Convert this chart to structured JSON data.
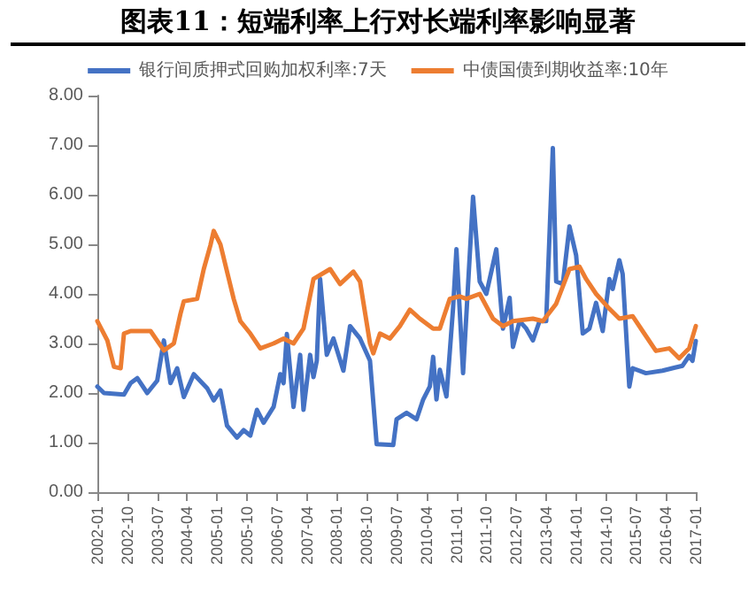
{
  "chart_data": {
    "type": "line",
    "title": "图表11：短端利率上行对长端利率影响显著",
    "legend": "top",
    "grid": false,
    "marker": "none",
    "line_style": "solid",
    "ylim": [
      0,
      8
    ],
    "yticks": [
      {
        "value": 0,
        "label": "0.00"
      },
      {
        "value": 1,
        "label": "1.00"
      },
      {
        "value": 2,
        "label": "2.00"
      },
      {
        "value": 3,
        "label": "3.00"
      },
      {
        "value": 4,
        "label": "4.00"
      },
      {
        "value": 5,
        "label": "5.00"
      },
      {
        "value": 6,
        "label": "6.00"
      },
      {
        "value": 7,
        "label": "7.00"
      },
      {
        "value": 8,
        "label": "8.00"
      }
    ],
    "xlim": [
      "2002-01",
      "2017-01"
    ],
    "xticks": [
      "2002-01",
      "2002-10",
      "2003-07",
      "2004-04",
      "2005-01",
      "2005-10",
      "2006-07",
      "2007-04",
      "2008-01",
      "2008-10",
      "2009-07",
      "2010-04",
      "2011-01",
      "2011-10",
      "2012-07",
      "2013-04",
      "2014-01",
      "2014-10",
      "2015-07",
      "2016-04",
      "2017-01"
    ],
    "series": [
      {
        "name": "银行间质押式回购加权利率:7天",
        "color": "#4472c4",
        "x": [
          "2002-01",
          "2002-03",
          "2002-09",
          "2002-11",
          "2003-01",
          "2003-04",
          "2003-07",
          "2003-09",
          "2003-11",
          "2004-01",
          "2004-03",
          "2004-06",
          "2004-10",
          "2004-12",
          "2005-02",
          "2005-04",
          "2005-07",
          "2005-09",
          "2005-11",
          "2006-01",
          "2006-03",
          "2006-06",
          "2006-08",
          "2006-09",
          "2006-10",
          "2006-12",
          "2007-02",
          "2007-03",
          "2007-05",
          "2007-06",
          "2007-07",
          "2007-08",
          "2007-10",
          "2007-12",
          "2008-03",
          "2008-05",
          "2008-08",
          "2008-11",
          "2009-01",
          "2009-06",
          "2009-07",
          "2009-10",
          "2010-01",
          "2010-03",
          "2010-05",
          "2010-06",
          "2010-07",
          "2010-08",
          "2010-10",
          "2010-12",
          "2011-01",
          "2011-03",
          "2011-06",
          "2011-08",
          "2011-10",
          "2012-01",
          "2012-03",
          "2012-05",
          "2012-06",
          "2012-08",
          "2012-10",
          "2012-12",
          "2013-02",
          "2013-04",
          "2013-06",
          "2013-07",
          "2013-09",
          "2013-11",
          "2014-01",
          "2014-03",
          "2014-05",
          "2014-07",
          "2014-09",
          "2014-11",
          "2014-12",
          "2015-02",
          "2015-03",
          "2015-05",
          "2015-06",
          "2015-10",
          "2016-03",
          "2016-09",
          "2016-11",
          "2016-12",
          "2017-01"
        ],
        "values": [
          2.13,
          2.0,
          1.97,
          2.2,
          2.3,
          2.0,
          2.25,
          3.06,
          2.2,
          2.5,
          1.92,
          2.38,
          2.1,
          1.85,
          2.05,
          1.34,
          1.1,
          1.25,
          1.14,
          1.66,
          1.4,
          1.72,
          2.38,
          2.2,
          3.19,
          1.72,
          2.77,
          1.66,
          2.77,
          2.32,
          2.65,
          4.3,
          2.77,
          3.1,
          2.45,
          3.35,
          3.1,
          2.65,
          0.97,
          0.95,
          1.47,
          1.6,
          1.47,
          1.87,
          2.13,
          2.73,
          1.87,
          2.47,
          1.93,
          3.72,
          4.9,
          2.4,
          5.96,
          4.25,
          4.0,
          4.9,
          3.3,
          3.92,
          2.93,
          3.45,
          3.3,
          3.06,
          3.45,
          3.45,
          6.94,
          4.25,
          4.2,
          5.36,
          4.78,
          3.2,
          3.3,
          3.82,
          3.25,
          4.3,
          4.1,
          4.68,
          4.4,
          2.13,
          2.5,
          2.4,
          2.45,
          2.55,
          2.75,
          2.65,
          3.05
        ]
      },
      {
        "name": "中债国债到期收益率:10年",
        "color": "#ed7d31",
        "x": [
          "2002-01",
          "2002-04",
          "2002-06",
          "2002-08",
          "2002-09",
          "2002-11",
          "2003-05",
          "2003-09",
          "2003-12",
          "2004-02",
          "2004-03",
          "2004-07",
          "2004-09",
          "2004-11",
          "2004-12",
          "2005-02",
          "2005-06",
          "2005-08",
          "2005-11",
          "2006-02",
          "2006-06",
          "2006-09",
          "2006-12",
          "2007-03",
          "2007-06",
          "2007-11",
          "2008-02",
          "2008-06",
          "2008-08",
          "2008-11",
          "2008-12",
          "2009-02",
          "2009-05",
          "2009-08",
          "2009-11",
          "2010-02",
          "2010-06",
          "2010-08",
          "2010-11",
          "2011-02",
          "2011-04",
          "2011-08",
          "2011-12",
          "2012-03",
          "2012-06",
          "2012-12",
          "2013-03",
          "2013-07",
          "2013-11",
          "2014-02",
          "2014-04",
          "2014-07",
          "2014-11",
          "2015-02",
          "2015-06",
          "2015-09",
          "2016-01",
          "2016-05",
          "2016-08",
          "2016-11",
          "2017-01"
        ],
        "values": [
          3.45,
          3.06,
          2.53,
          2.5,
          3.2,
          3.25,
          3.25,
          2.86,
          3.0,
          3.6,
          3.85,
          3.9,
          4.5,
          4.98,
          5.27,
          5.0,
          3.9,
          3.45,
          3.2,
          2.9,
          3.0,
          3.1,
          3.0,
          3.3,
          4.3,
          4.5,
          4.2,
          4.45,
          4.25,
          3.0,
          2.8,
          3.2,
          3.1,
          3.35,
          3.68,
          3.5,
          3.3,
          3.3,
          3.9,
          3.95,
          3.9,
          4.0,
          3.5,
          3.35,
          3.45,
          3.5,
          3.45,
          3.8,
          4.5,
          4.55,
          4.3,
          4.0,
          3.7,
          3.5,
          3.55,
          3.25,
          2.85,
          2.9,
          2.7,
          2.9,
          3.35
        ]
      }
    ]
  }
}
